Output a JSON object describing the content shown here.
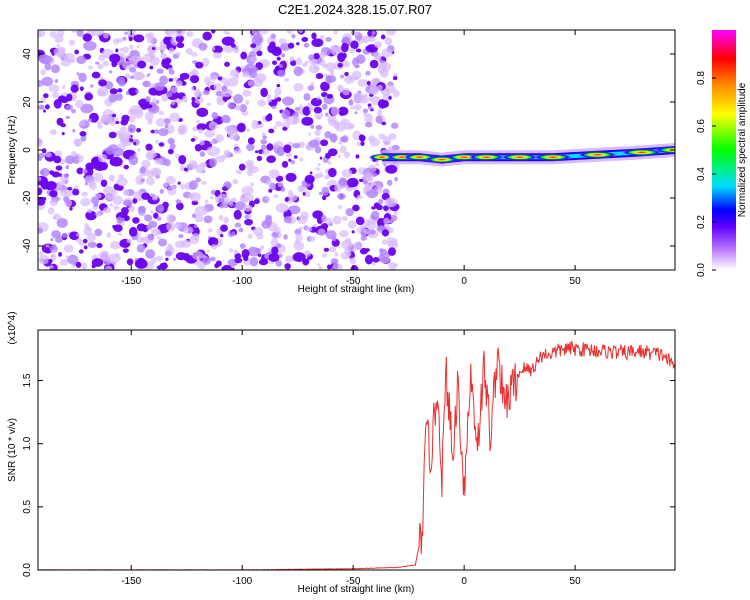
{
  "title": "C2E1.2024.328.15.07.R07",
  "chart_data": [
    {
      "type": "heatmap",
      "title": "C2E1.2024.328.15.07.R07",
      "xlabel": "Height of straight line (km)",
      "ylabel": "Frequency (Hz)",
      "xlim": [
        -192,
        95
      ],
      "ylim": [
        -50,
        50
      ],
      "x_ticks": [
        -150,
        -100,
        -50,
        0,
        50
      ],
      "y_ticks": [
        -40,
        -20,
        0,
        20,
        40
      ],
      "colorbar": {
        "label": "Normalized spectral amplitude",
        "range": [
          0.0,
          1.0
        ],
        "ticks": [
          "0.0",
          "0.2",
          "0.4",
          "0.6",
          "0.8"
        ],
        "colormap": [
          "#ffffff",
          "#c080ff",
          "#6000ff",
          "#0000ff",
          "#00e0ff",
          "#00ff00",
          "#ffff00",
          "#ff8000",
          "#ff0000",
          "#ff00ff"
        ]
      },
      "noise_region_x": [
        -192,
        -35
      ],
      "signal_ridge": [
        {
          "x": -37,
          "y": -3,
          "amp": 0.3
        },
        {
          "x": -28,
          "y": -3,
          "amp": 0.45
        },
        {
          "x": -20,
          "y": -3,
          "amp": 0.55
        },
        {
          "x": -10,
          "y": -4,
          "amp": 0.6
        },
        {
          "x": 0,
          "y": -3,
          "amp": 0.65
        },
        {
          "x": 10,
          "y": -3,
          "amp": 0.7
        },
        {
          "x": 25,
          "y": -3,
          "amp": 0.75
        },
        {
          "x": 40,
          "y": -3,
          "amp": 0.8
        },
        {
          "x": 60,
          "y": -2,
          "amp": 0.85
        },
        {
          "x": 80,
          "y": -1,
          "amp": 0.9
        },
        {
          "x": 95,
          "y": 0,
          "amp": 0.95
        }
      ]
    },
    {
      "type": "line",
      "xlabel": "Height of straight line (km)",
      "ylabel": "SNR (10 * v/v)",
      "y_multiplier": "(x10^4)",
      "xlim": [
        -192,
        95
      ],
      "ylim": [
        0,
        1.9
      ],
      "x_ticks": [
        -150,
        -100,
        -50,
        0,
        50
      ],
      "y_ticks": [
        "0.0",
        "0.5",
        "1.0",
        "1.5"
      ],
      "line_color": "#e83030",
      "series": [
        {
          "x": [
            -192,
            -150,
            -100,
            -50,
            -30,
            -22,
            -19,
            -17,
            -15,
            -12,
            -10,
            -8,
            -5,
            -3,
            0,
            3,
            6,
            9,
            12,
            15,
            18,
            22,
            26,
            30,
            35,
            40,
            45,
            50,
            60,
            70,
            80,
            90,
            95
          ],
          "values": [
            0.0,
            0.0,
            0.0,
            0.01,
            0.02,
            0.04,
            0.3,
            1.1,
            0.9,
            1.45,
            0.75,
            1.55,
            0.85,
            1.5,
            0.65,
            1.55,
            1.0,
            1.6,
            1.05,
            1.75,
            1.3,
            1.45,
            1.6,
            1.58,
            1.7,
            1.72,
            1.75,
            1.75,
            1.74,
            1.72,
            1.73,
            1.7,
            1.6
          ]
        }
      ]
    }
  ]
}
